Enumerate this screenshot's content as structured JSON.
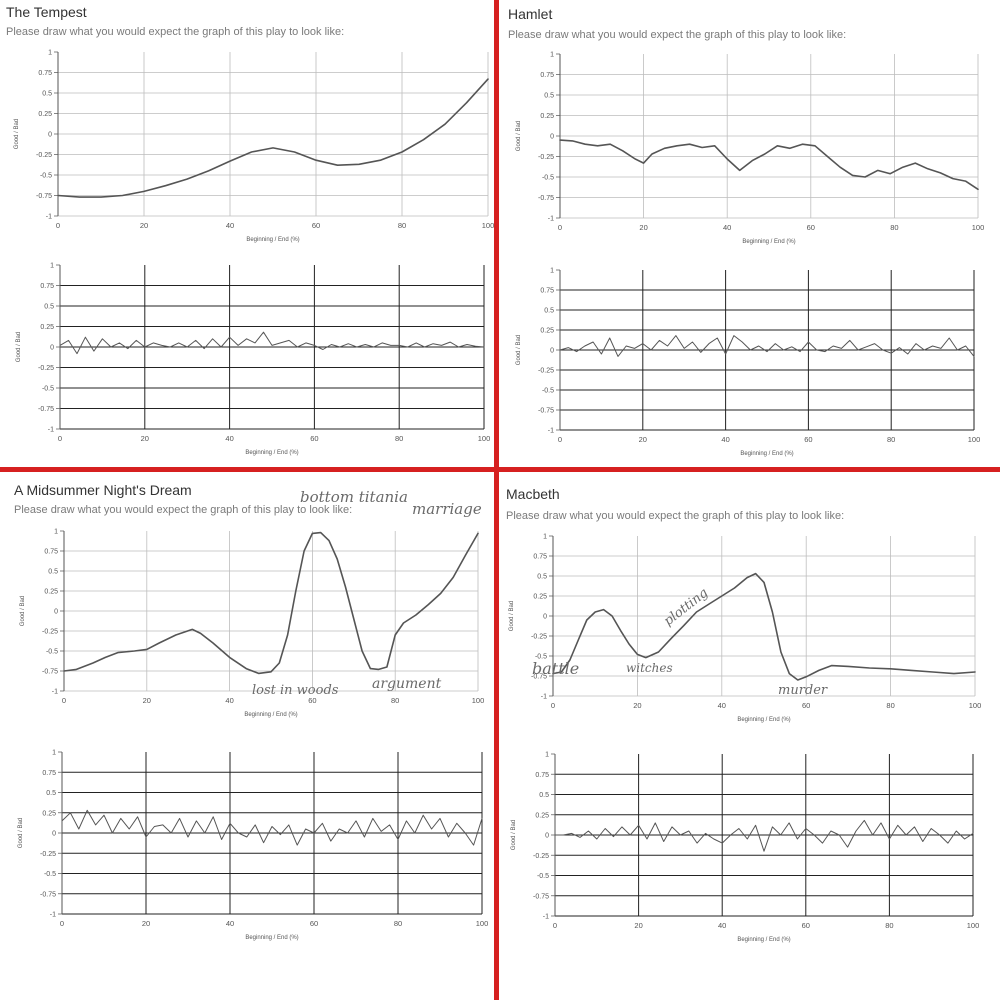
{
  "prompt": "Please draw what you would expect the graph of this play to look like:",
  "colors": {
    "divider": "#d62020",
    "line": "#555555",
    "grid": "#bdbdbd",
    "dark_grid": "#222222"
  },
  "plays": [
    {
      "title": "The Tempest",
      "annotations": []
    },
    {
      "title": "Hamlet",
      "annotations": []
    },
    {
      "title": "A Midsummer Night's Dream",
      "annotations": [
        "bottom titania",
        "marriage",
        "lost in woods",
        "argument"
      ]
    },
    {
      "title": "Macbeth",
      "annotations": [
        "battle",
        "witches",
        "plotting",
        "murder"
      ]
    }
  ],
  "chart_data": [
    {
      "type": "line",
      "play": "The Tempest",
      "panel": "expected (drawn)",
      "xlabel": "Beginning / End (%)",
      "ylabel": "Good / Bad",
      "xlim": [
        0,
        100
      ],
      "ylim": [
        -1,
        1
      ],
      "xticks": [
        "0",
        "20",
        "40",
        "60",
        "80",
        "100"
      ],
      "yticks": [
        "1",
        "0.75",
        "0.5",
        "0.25",
        "0",
        "-0.25",
        "-0.5",
        "-0.75",
        "-1"
      ],
      "x": [
        0,
        5,
        10,
        15,
        20,
        25,
        30,
        35,
        40,
        45,
        50,
        55,
        60,
        65,
        70,
        75,
        80,
        85,
        90,
        95,
        100
      ],
      "y": [
        -0.75,
        -0.77,
        -0.77,
        -0.75,
        -0.7,
        -0.63,
        -0.55,
        -0.45,
        -0.33,
        -0.22,
        -0.17,
        -0.22,
        -0.32,
        -0.38,
        -0.37,
        -0.32,
        -0.22,
        -0.07,
        0.12,
        0.38,
        0.67
      ]
    },
    {
      "type": "line",
      "play": "The Tempest",
      "panel": "actual",
      "xlabel": "Beginning / End (%)",
      "ylabel": "Good / Bad",
      "xlim": [
        0,
        100
      ],
      "ylim": [
        -1,
        1
      ],
      "xticks": [
        "0",
        "20",
        "40",
        "60",
        "80",
        "100"
      ],
      "yticks": [
        "1",
        "0.75",
        "0.5",
        "0.25",
        "0",
        "-0.25",
        "-0.5",
        "-0.75",
        "-1"
      ],
      "x": [
        0,
        2,
        4,
        6,
        8,
        10,
        12,
        14,
        16,
        18,
        20,
        22,
        24,
        26,
        28,
        30,
        32,
        34,
        36,
        38,
        40,
        42,
        44,
        46,
        48,
        50,
        52,
        54,
        56,
        58,
        60,
        62,
        64,
        66,
        68,
        70,
        72,
        74,
        76,
        78,
        80,
        82,
        84,
        86,
        88,
        90,
        92,
        94,
        96,
        98,
        100
      ],
      "y": [
        0.02,
        0.08,
        -0.08,
        0.12,
        -0.05,
        0.1,
        0.0,
        0.05,
        -0.02,
        0.08,
        0.0,
        0.05,
        0.02,
        0.0,
        0.05,
        0.0,
        0.08,
        -0.02,
        0.1,
        0.0,
        0.12,
        0.02,
        0.1,
        0.05,
        0.18,
        0.02,
        0.05,
        0.08,
        0.0,
        0.05,
        0.02,
        -0.03,
        0.03,
        0.0,
        0.04,
        0.0,
        0.03,
        0.0,
        0.05,
        0.02,
        0.02,
        0.0,
        0.05,
        0.0,
        0.04,
        0.02,
        0.06,
        0.0,
        0.03,
        0.01,
        0.0
      ]
    },
    {
      "type": "line",
      "play": "Hamlet",
      "panel": "expected (drawn)",
      "xlabel": "Beginning / End (%)",
      "ylabel": "Good / Bad",
      "xlim": [
        0,
        100
      ],
      "ylim": [
        -1,
        1
      ],
      "xticks": [
        "0",
        "20",
        "40",
        "60",
        "80",
        "100"
      ],
      "yticks": [
        "1",
        "0.75",
        "0.5",
        "0.25",
        "0",
        "-0.25",
        "-0.5",
        "-0.75",
        "-1"
      ],
      "x": [
        0,
        3,
        6,
        9,
        12,
        15,
        18,
        20,
        22,
        25,
        28,
        31,
        34,
        37,
        40,
        43,
        46,
        49,
        52,
        55,
        58,
        61,
        64,
        67,
        70,
        73,
        76,
        79,
        82,
        85,
        88,
        91,
        94,
        97,
        100
      ],
      "y": [
        -0.05,
        -0.06,
        -0.1,
        -0.12,
        -0.1,
        -0.18,
        -0.28,
        -0.33,
        -0.22,
        -0.15,
        -0.12,
        -0.1,
        -0.14,
        -0.12,
        -0.28,
        -0.42,
        -0.3,
        -0.22,
        -0.12,
        -0.15,
        -0.1,
        -0.12,
        -0.25,
        -0.38,
        -0.48,
        -0.5,
        -0.42,
        -0.46,
        -0.38,
        -0.33,
        -0.4,
        -0.45,
        -0.52,
        -0.55,
        -0.65
      ]
    },
    {
      "type": "line",
      "play": "Hamlet",
      "panel": "actual",
      "xlabel": "Beginning / End (%)",
      "ylabel": "Good / Bad",
      "xlim": [
        0,
        100
      ],
      "ylim": [
        -1,
        1
      ],
      "xticks": [
        "0",
        "20",
        "40",
        "60",
        "80",
        "100"
      ],
      "yticks": [
        "1",
        "0.75",
        "0.5",
        "0.25",
        "0",
        "-0.25",
        "-0.5",
        "-0.75",
        "-1"
      ],
      "x": [
        0,
        2,
        4,
        6,
        8,
        10,
        12,
        14,
        16,
        18,
        20,
        22,
        24,
        26,
        28,
        30,
        32,
        34,
        36,
        38,
        40,
        42,
        44,
        46,
        48,
        50,
        52,
        54,
        56,
        58,
        60,
        62,
        64,
        66,
        68,
        70,
        72,
        74,
        76,
        78,
        80,
        82,
        84,
        86,
        88,
        90,
        92,
        94,
        96,
        98,
        100
      ],
      "y": [
        0.0,
        0.03,
        -0.02,
        0.05,
        0.1,
        -0.05,
        0.15,
        -0.08,
        0.05,
        0.02,
        0.08,
        0.0,
        0.12,
        0.05,
        0.18,
        0.02,
        0.1,
        -0.03,
        0.08,
        0.15,
        -0.05,
        0.18,
        0.1,
        0.0,
        0.05,
        -0.02,
        0.08,
        0.0,
        0.04,
        -0.02,
        0.1,
        0.0,
        -0.02,
        0.05,
        0.02,
        0.12,
        0.0,
        0.04,
        0.08,
        0.0,
        -0.04,
        0.03,
        -0.05,
        0.08,
        0.0,
        0.05,
        0.02,
        0.15,
        0.0,
        0.05,
        -0.08
      ]
    },
    {
      "type": "line",
      "play": "A Midsummer Night's Dream",
      "panel": "expected (drawn)",
      "xlabel": "Beginning / End (%)",
      "ylabel": "Good / Bad",
      "xlim": [
        0,
        100
      ],
      "ylim": [
        -1,
        1
      ],
      "xticks": [
        "0",
        "20",
        "40",
        "60",
        "80",
        "100"
      ],
      "yticks": [
        "1",
        "0.75",
        "0.5",
        "0.25",
        "0",
        "-0.25",
        "-0.5",
        "-0.75",
        "-1"
      ],
      "x": [
        0,
        3,
        7,
        10,
        13,
        17,
        20,
        23,
        27,
        31,
        33,
        36,
        40,
        44,
        47,
        50,
        52,
        54,
        56,
        58,
        60,
        62,
        64,
        66,
        68,
        70,
        72,
        74,
        76,
        78,
        80,
        82,
        85,
        88,
        91,
        94,
        97,
        100
      ],
      "y": [
        -0.75,
        -0.73,
        -0.65,
        -0.58,
        -0.52,
        -0.5,
        -0.48,
        -0.4,
        -0.3,
        -0.23,
        -0.28,
        -0.4,
        -0.58,
        -0.72,
        -0.78,
        -0.76,
        -0.65,
        -0.3,
        0.25,
        0.75,
        0.97,
        0.98,
        0.88,
        0.65,
        0.3,
        -0.1,
        -0.5,
        -0.72,
        -0.73,
        -0.7,
        -0.3,
        -0.15,
        -0.05,
        0.08,
        0.22,
        0.42,
        0.7,
        0.97
      ]
    },
    {
      "type": "line",
      "play": "A Midsummer Night's Dream",
      "panel": "actual",
      "xlabel": "Beginning / End (%)",
      "ylabel": "Good / Bad",
      "xlim": [
        0,
        100
      ],
      "ylim": [
        -1,
        1
      ],
      "xticks": [
        "0",
        "20",
        "40",
        "60",
        "80",
        "100"
      ],
      "yticks": [
        "1",
        "0.75",
        "0.5",
        "0.25",
        "0",
        "-0.25",
        "-0.5",
        "-0.75",
        "-1"
      ],
      "x": [
        0,
        2,
        4,
        6,
        8,
        10,
        12,
        14,
        16,
        18,
        20,
        22,
        24,
        26,
        28,
        30,
        32,
        34,
        36,
        38,
        40,
        42,
        44,
        46,
        48,
        50,
        52,
        54,
        56,
        58,
        60,
        62,
        64,
        66,
        68,
        70,
        72,
        74,
        76,
        78,
        80,
        82,
        84,
        86,
        88,
        90,
        92,
        94,
        96,
        98,
        100
      ],
      "y": [
        0.15,
        0.25,
        0.05,
        0.28,
        0.1,
        0.22,
        0.0,
        0.18,
        0.05,
        0.2,
        -0.05,
        0.08,
        0.1,
        0.0,
        0.18,
        -0.05,
        0.15,
        0.0,
        0.2,
        -0.08,
        0.12,
        0.0,
        -0.05,
        0.1,
        -0.12,
        0.08,
        -0.02,
        0.1,
        -0.15,
        0.05,
        0.0,
        0.12,
        -0.1,
        0.05,
        0.0,
        0.15,
        -0.05,
        0.18,
        0.02,
        0.1,
        -0.08,
        0.15,
        0.0,
        0.22,
        0.05,
        0.18,
        -0.05,
        0.12,
        0.0,
        -0.15,
        0.18
      ]
    },
    {
      "type": "line",
      "play": "Macbeth",
      "panel": "expected (drawn)",
      "xlabel": "Beginning / End (%)",
      "ylabel": "Good / Bad",
      "xlim": [
        0,
        100
      ],
      "ylim": [
        -1,
        1
      ],
      "xticks": [
        "0",
        "20",
        "40",
        "60",
        "80",
        "100"
      ],
      "yticks": [
        "1",
        "0.75",
        "0.5",
        "0.25",
        "0",
        "-0.25",
        "-0.5",
        "-0.75",
        "-1"
      ],
      "x": [
        0,
        2,
        4,
        6,
        8,
        10,
        12,
        14,
        16,
        18,
        20,
        22,
        25,
        28,
        31,
        34,
        37,
        40,
        43,
        46,
        48,
        50,
        52,
        54,
        56,
        58,
        60,
        63,
        66,
        70,
        75,
        80,
        85,
        90,
        95,
        100
      ],
      "y": [
        -0.72,
        -0.7,
        -0.55,
        -0.3,
        -0.05,
        0.05,
        0.08,
        0.0,
        -0.18,
        -0.35,
        -0.48,
        -0.52,
        -0.45,
        -0.28,
        -0.12,
        0.05,
        0.15,
        0.25,
        0.35,
        0.48,
        0.53,
        0.42,
        0.05,
        -0.45,
        -0.72,
        -0.8,
        -0.76,
        -0.68,
        -0.62,
        -0.63,
        -0.65,
        -0.66,
        -0.68,
        -0.7,
        -0.72,
        -0.7
      ]
    },
    {
      "type": "line",
      "play": "Macbeth",
      "panel": "actual",
      "xlabel": "Beginning / End (%)",
      "ylabel": "Good / Bad",
      "xlim": [
        0,
        100
      ],
      "ylim": [
        -1,
        1
      ],
      "xticks": [
        "0",
        "20",
        "40",
        "60",
        "80",
        "100"
      ],
      "yticks": [
        "1",
        "0.75",
        "0.5",
        "0.25",
        "0",
        "-0.25",
        "-0.5",
        "-0.75",
        "-1"
      ],
      "x": [
        0,
        2,
        4,
        6,
        8,
        10,
        12,
        14,
        16,
        18,
        20,
        22,
        24,
        26,
        28,
        30,
        32,
        34,
        36,
        38,
        40,
        42,
        44,
        46,
        48,
        50,
        52,
        54,
        56,
        58,
        60,
        62,
        64,
        66,
        68,
        70,
        72,
        74,
        76,
        78,
        80,
        82,
        84,
        86,
        88,
        90,
        92,
        94,
        96,
        98,
        100
      ],
      "y": [
        0.0,
        0.0,
        0.02,
        -0.03,
        0.05,
        -0.05,
        0.08,
        -0.02,
        0.1,
        0.0,
        0.12,
        -0.05,
        0.15,
        -0.08,
        0.1,
        0.0,
        0.05,
        -0.1,
        0.02,
        -0.05,
        -0.1,
        0.0,
        0.08,
        -0.05,
        0.12,
        -0.2,
        0.1,
        0.0,
        0.15,
        -0.05,
        0.08,
        0.0,
        -0.1,
        0.05,
        0.0,
        -0.15,
        0.05,
        0.18,
        0.0,
        0.15,
        -0.05,
        0.12,
        0.0,
        0.1,
        -0.08,
        0.08,
        0.0,
        -0.1,
        0.05,
        -0.05,
        0.02
      ]
    }
  ]
}
